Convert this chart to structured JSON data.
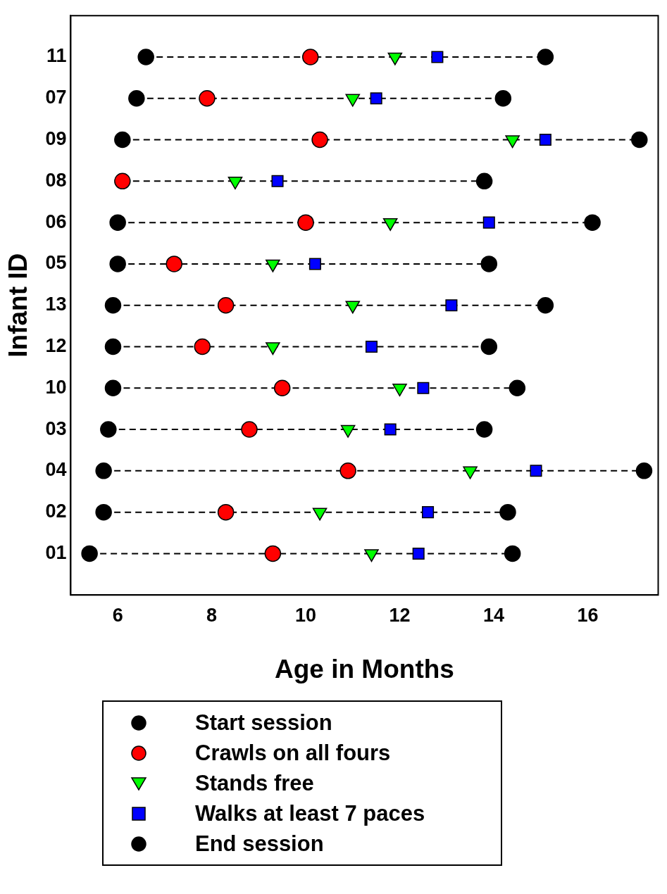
{
  "chart_data": {
    "type": "scatter",
    "xlabel": "Age in Months",
    "ylabel": "Infant ID",
    "categories": [
      "11",
      "07",
      "09",
      "08",
      "06",
      "05",
      "13",
      "12",
      "10",
      "03",
      "04",
      "02",
      "01"
    ],
    "orientation": "horizontal",
    "xlim": [
      5.0,
      17.5
    ],
    "xticks": [
      6,
      8,
      10,
      12,
      14,
      16
    ],
    "grid": false,
    "legend": "bottom",
    "line_style": "dashed",
    "series": [
      {
        "name": "Start session",
        "color": "#000000",
        "marker": "circle",
        "values": [
          6.6,
          6.4,
          6.1,
          null,
          6.0,
          6.0,
          5.9,
          5.9,
          5.9,
          5.8,
          5.7,
          5.7,
          5.4
        ]
      },
      {
        "name": "Crawls on all fours",
        "color": "#ff0000",
        "marker": "circle",
        "values": [
          10.1,
          7.9,
          10.3,
          6.1,
          10.0,
          7.2,
          8.3,
          7.8,
          9.5,
          8.8,
          10.9,
          8.3,
          9.3
        ]
      },
      {
        "name": "Stands free",
        "color": "#00ff00",
        "marker": "triangle",
        "values": [
          11.9,
          11.0,
          14.4,
          8.5,
          11.8,
          9.3,
          11.0,
          9.3,
          12.0,
          10.9,
          13.5,
          10.3,
          11.4
        ]
      },
      {
        "name": "Walks at least 7 paces",
        "color": "#0000ff",
        "marker": "square",
        "values": [
          12.8,
          11.5,
          15.1,
          9.4,
          13.9,
          10.2,
          13.1,
          11.4,
          12.5,
          11.8,
          14.9,
          12.6,
          12.4
        ]
      },
      {
        "name": "End session",
        "color": "#000000",
        "marker": "circle",
        "values": [
          15.1,
          14.2,
          17.1,
          13.8,
          16.1,
          13.9,
          15.1,
          13.9,
          14.5,
          13.8,
          17.2,
          14.3,
          14.4
        ]
      }
    ]
  }
}
